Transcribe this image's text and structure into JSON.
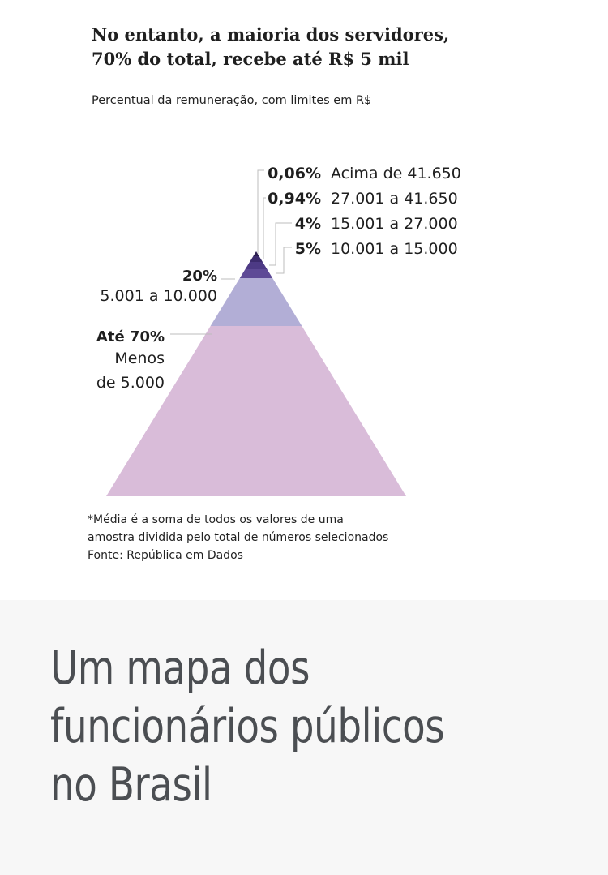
{
  "chart_data": {
    "type": "pyramid",
    "title": "No entanto, a maioria dos servidores, 70% do total, recebe até R$ 5 mil",
    "title_lines": [
      "No entanto, a maioria dos servidores,",
      "70% do total, recebe até R$ 5 mil"
    ],
    "subtitle": "Percentual da remuneração, com limites em R$",
    "segments": [
      {
        "percent_label": "0,06%",
        "range_label": "Acima de 41.650",
        "value": 0.06,
        "color": "#2b1d4f"
      },
      {
        "percent_label": "0,94%",
        "range_label": "27.001 a 41.650",
        "value": 0.94,
        "color": "#3c2b6d"
      },
      {
        "percent_label": "4%",
        "range_label": "15.001 a 27.000",
        "value": 4,
        "color": "#4d3a85"
      },
      {
        "percent_label": "5%",
        "range_label": "10.001 a 15.000",
        "value": 5,
        "color": "#5e4a96"
      },
      {
        "percent_label": "20%",
        "range_label": "5.001 a 10.000",
        "value": 20,
        "color": "#b2aed6"
      },
      {
        "percent_label": "Até 70%",
        "range_label": "Menos de 5.000",
        "range_lines": [
          "Menos",
          "de 5.000"
        ],
        "value": 70,
        "color": "#d9bcd9"
      }
    ]
  },
  "footnote": {
    "lines": [
      "*Média é a soma de todos os valores de uma",
      "amostra dividida pelo total de números selecionados",
      "Fonte: República em Dados"
    ]
  },
  "article": {
    "headline_lines": [
      "Um mapa dos",
      "funcionários públicos",
      "no Brasil"
    ]
  }
}
